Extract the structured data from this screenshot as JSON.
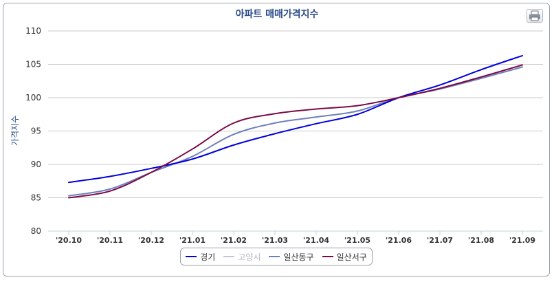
{
  "chart_data": {
    "type": "line",
    "title": "아파트 매매가격지수",
    "ylabel": "가격지수",
    "xlabel": "",
    "ylim": [
      80,
      110
    ],
    "yticks": [
      80,
      85,
      90,
      95,
      100,
      105,
      110
    ],
    "grid": true,
    "legend_position": "bottom",
    "categories": [
      "'20.10",
      "'20.11",
      "'20.12",
      "'21.01",
      "'21.02",
      "'21.03",
      "'21.04",
      "'21.05",
      "'21.06",
      "'21.07",
      "'21.08",
      "'21.09"
    ],
    "series": [
      {
        "name": "경기",
        "color": "#0000dd",
        "visible": true,
        "values": [
          87.3,
          88.2,
          89.4,
          90.8,
          92.9,
          94.6,
          96.1,
          97.5,
          100.0,
          101.9,
          104.2,
          106.3
        ]
      },
      {
        "name": "고양시",
        "color": "#c4c7cc",
        "visible": false,
        "values": [
          85.3,
          86.3,
          88.8,
          91.2,
          94.5,
          96.2,
          97.1,
          98.0,
          100.0,
          101.3,
          102.9,
          104.6
        ]
      },
      {
        "name": "일산동구",
        "color": "#6d7fbd",
        "visible": true,
        "values": [
          85.3,
          86.3,
          88.8,
          91.2,
          94.5,
          96.2,
          97.1,
          98.0,
          100.0,
          101.3,
          102.9,
          104.6
        ]
      },
      {
        "name": "일산서구",
        "color": "#7a0a45",
        "visible": true,
        "values": [
          85.0,
          86.0,
          88.8,
          92.3,
          96.2,
          97.6,
          98.3,
          98.8,
          100.0,
          101.4,
          103.1,
          104.9
        ]
      }
    ]
  },
  "toolbar": {
    "print_icon": "print-icon"
  }
}
